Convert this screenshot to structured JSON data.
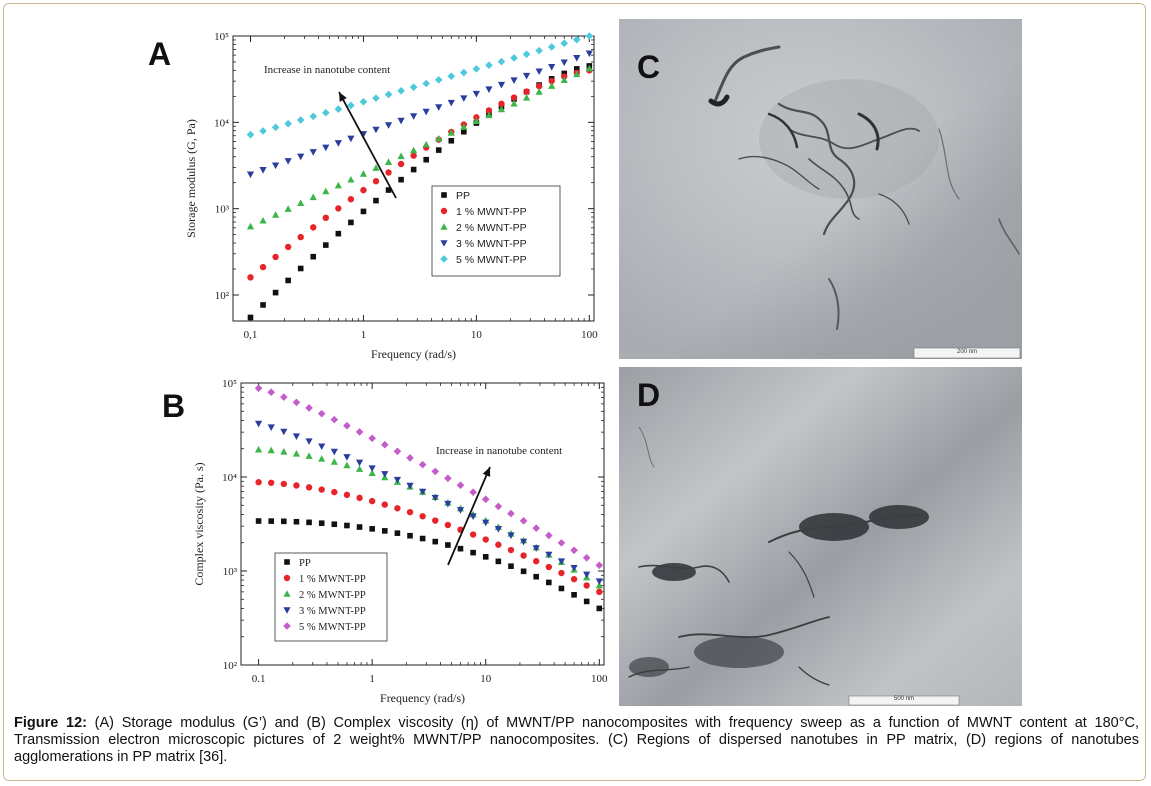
{
  "panels": {
    "a_letter": "A",
    "b_letter": "B",
    "c_letter": "C",
    "d_letter": "D"
  },
  "chart_data": [
    {
      "type": "scatter",
      "panel": "A",
      "xlabel": "Frequency (rad/s)",
      "ylabel": "Storage modulus (G, Pa)",
      "xscale": "log",
      "yscale": "log",
      "xlim": [
        0.07,
        110
      ],
      "ylim": [
        50,
        100000
      ],
      "xticks": [
        "0,1",
        "1",
        "10",
        "100"
      ],
      "yticks": [
        "10²",
        "10³",
        "10⁴",
        "10⁵"
      ],
      "annotation": "Increase in nanotube content",
      "legend_position": "lower-right",
      "series": [
        {
          "name": "PP",
          "color": "#111111",
          "marker": "square",
          "start": [
            0.1,
            55
          ],
          "end": [
            100,
            45000
          ],
          "curve": "flattening"
        },
        {
          "name": "1 % MWNT-PP",
          "color": "#e8242b",
          "marker": "circle",
          "start": [
            0.1,
            160
          ],
          "end": [
            100,
            40000
          ],
          "curve": "flattening"
        },
        {
          "name": "2 % MWNT-PP",
          "color": "#3cb54a",
          "marker": "triangle-up",
          "start": [
            0.1,
            620
          ],
          "end": [
            100,
            42000
          ],
          "curve": "straight"
        },
        {
          "name": "3 % MWNT-PP",
          "color": "#2b3e9e",
          "marker": "triangle-down",
          "start": [
            0.1,
            2500
          ],
          "end": [
            100,
            63000
          ],
          "curve": "straight"
        },
        {
          "name": "5 % MWNT-PP",
          "color": "#4ec9dc",
          "marker": "diamond",
          "start": [
            0.1,
            7200
          ],
          "end": [
            100,
            100000
          ],
          "curve": "straight"
        }
      ]
    },
    {
      "type": "scatter",
      "panel": "B",
      "xlabel": "Frequency (rad/s)",
      "ylabel": "Complex viscosity (Pa. s)",
      "xscale": "log",
      "yscale": "log",
      "xlim": [
        0.07,
        110
      ],
      "ylim": [
        100,
        100000
      ],
      "xticks": [
        "0.1",
        "1",
        "10",
        "100"
      ],
      "yticks": [
        "10²",
        "10³",
        "10⁴",
        "10⁵"
      ],
      "annotation": "Increase in nanotube content",
      "legend_position": "lower-left",
      "series": [
        {
          "name": "PP",
          "color": "#111111",
          "marker": "square",
          "start": [
            0.1,
            3400
          ],
          "end": [
            100,
            400
          ],
          "curve": "plateau-then-drop"
        },
        {
          "name": "1 % MWNT-PP",
          "color": "#e8242b",
          "marker": "circle",
          "start": [
            0.1,
            8800
          ],
          "end": [
            100,
            600
          ],
          "curve": "gradual-drop"
        },
        {
          "name": "2 % MWNT-PP",
          "color": "#3cb54a",
          "marker": "triangle-up",
          "start": [
            0.1,
            19500
          ],
          "end": [
            100,
            700
          ],
          "curve": "gradual-drop"
        },
        {
          "name": "3 % MWNT-PP",
          "color": "#2b3e9e",
          "marker": "triangle-down",
          "start": [
            0.1,
            37000
          ],
          "end": [
            100,
            780
          ],
          "curve": "steady-drop"
        },
        {
          "name": "5 % MWNT-PP",
          "color": "#c45cc9",
          "marker": "diamond",
          "start": [
            0.1,
            88000
          ],
          "end": [
            100,
            1150
          ],
          "curve": "steady-drop"
        }
      ]
    }
  ],
  "tem": {
    "c_scale": "200 nm",
    "d_scale": "500 nm"
  },
  "caption": {
    "label": "Figure 12:",
    "text": " (A) Storage modulus (G’) and (B) Complex viscosity (η) of MWNT/PP nanocomposites with frequency sweep as a function of MWNT content at 180°C, Transmission electron microscopic pictures of 2 weight% MWNT/PP nanocomposites. (C) Regions of dispersed nanotubes in PP matrix, (D) regions of nanotubes agglomerations in PP matrix [36]."
  }
}
